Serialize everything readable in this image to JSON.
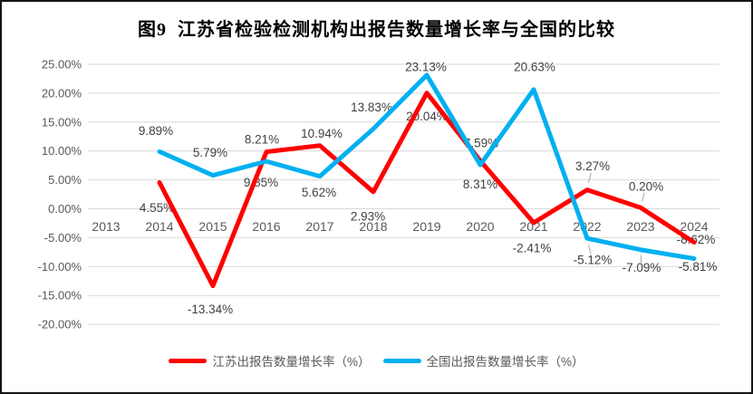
{
  "chart": {
    "title": "图9  江苏省检验检测机构出报告数量增长率与全国的比较"
  },
  "chart_data": {
    "type": "line",
    "title": "图9  江苏省检验检测机构出报告数量增长率与全国的比较",
    "xlabel": "",
    "ylabel": "",
    "grid": true,
    "legend_position": "bottom",
    "ylim": [
      -20,
      25
    ],
    "ytick_values": [
      25,
      20,
      15,
      10,
      5,
      0,
      -5,
      -10,
      -15,
      -20
    ],
    "ytick_labels": [
      "25.00%",
      "20.00%",
      "15.00%",
      "10.00%",
      "5.00%",
      "0.00%",
      "-5.00%",
      "-10.00%",
      "-15.00%",
      "-20.00%"
    ],
    "categories": [
      "2013",
      "2014",
      "2015",
      "2016",
      "2017",
      "2018",
      "2019",
      "2020",
      "2021",
      "2022",
      "2023",
      "2024"
    ],
    "series": [
      {
        "id": "jiangsu-series-line",
        "name": "江苏出报告数量增长率（%）",
        "color": "#FF0000",
        "values": [
          null,
          4.55,
          -13.34,
          9.85,
          10.94,
          2.93,
          20.04,
          8.31,
          -2.41,
          3.27,
          0.2,
          -5.81
        ],
        "labels": [
          "",
          "4.55%",
          "-13.34%",
          "9.85%",
          "10.94%",
          "2.93%",
          "20.04%",
          "8.31%",
          "-2.41%",
          "3.27%",
          "0.20%",
          "-5.81%"
        ],
        "label_offsets": [
          null,
          [
            -3,
            28
          ],
          [
            -3,
            26
          ],
          [
            -6,
            34
          ],
          [
            2,
            -13
          ],
          [
            -6,
            27
          ],
          [
            0,
            26
          ],
          [
            0,
            26
          ],
          [
            -2,
            28
          ],
          [
            6,
            -26
          ],
          [
            6,
            -23
          ],
          [
            4,
            27
          ]
        ],
        "leader_indexes": [
          9,
          10
        ]
      },
      {
        "id": "national-series-line",
        "name": "全国出报告数量增长率（%）",
        "color": "#00B0F0",
        "values": [
          null,
          9.89,
          5.79,
          8.21,
          5.62,
          13.83,
          23.13,
          7.59,
          20.63,
          -5.12,
          -7.09,
          -8.62
        ],
        "labels": [
          "",
          "9.89%",
          "5.79%",
          "8.21%",
          "5.62%",
          "13.83%",
          "23.13%",
          "7.59%",
          "20.63%",
          "-5.12%",
          "-7.09%",
          "-8.62%"
        ],
        "label_offsets": [
          null,
          [
            -4,
            -23
          ],
          [
            -3,
            -25
          ],
          [
            -5,
            -24
          ],
          [
            -1,
            18
          ],
          [
            -2,
            -24
          ],
          [
            -1,
            -9
          ],
          [
            1,
            -24
          ],
          [
            1,
            -25
          ],
          [
            6,
            24
          ],
          [
            1,
            20
          ],
          [
            2,
            -21
          ]
        ],
        "leader_indexes": [
          9,
          10
        ]
      }
    ]
  }
}
